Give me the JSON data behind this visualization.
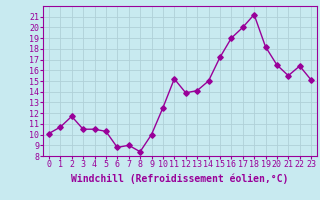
{
  "x": [
    0,
    1,
    2,
    3,
    4,
    5,
    6,
    7,
    8,
    9,
    10,
    11,
    12,
    13,
    14,
    15,
    16,
    17,
    18,
    19,
    20,
    21,
    22,
    23
  ],
  "y": [
    10.1,
    10.7,
    11.7,
    10.5,
    10.5,
    10.3,
    8.8,
    9.0,
    8.4,
    10.0,
    12.5,
    15.2,
    13.9,
    14.1,
    15.0,
    17.2,
    19.0,
    20.0,
    21.2,
    18.2,
    16.5,
    15.5,
    16.4,
    15.1
  ],
  "color": "#990099",
  "bg_color": "#c8eaf0",
  "grid_color": "#b0d0d8",
  "xlabel": "Windchill (Refroidissement éolien,°C)",
  "ylim": [
    8,
    22
  ],
  "xlim": [
    -0.5,
    23.5
  ],
  "yticks": [
    8,
    9,
    10,
    11,
    12,
    13,
    14,
    15,
    16,
    17,
    18,
    19,
    20,
    21
  ],
  "xticks": [
    0,
    1,
    2,
    3,
    4,
    5,
    6,
    7,
    8,
    9,
    10,
    11,
    12,
    13,
    14,
    15,
    16,
    17,
    18,
    19,
    20,
    21,
    22,
    23
  ],
  "tick_fontsize": 6,
  "xlabel_fontsize": 7,
  "linewidth": 1.0,
  "markersize": 2.8
}
